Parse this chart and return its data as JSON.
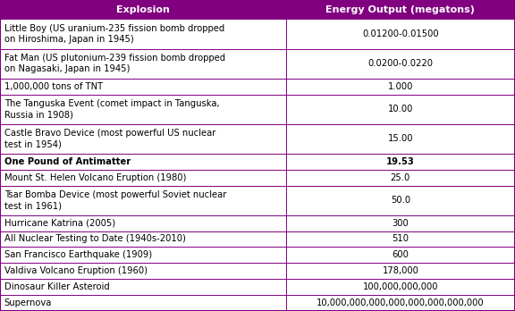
{
  "header": [
    "Explosion",
    "Energy Output (megatons)"
  ],
  "header_bg": "#800080",
  "header_fg": "#ffffff",
  "rows": [
    [
      "Little Boy (US uranium-235 fission bomb dropped\non Hiroshima, Japan in 1945)",
      "0.01200-0.01500"
    ],
    [
      "Fat Man (US plutonium-239 fission bomb dropped\non Nagasaki, Japan in 1945)",
      "0.0200-0.0220"
    ],
    [
      "1,000,000 tons of TNT",
      "1.000"
    ],
    [
      "The Tanguska Event (comet impact in Tanguska,\nRussia in 1908)",
      "10.00"
    ],
    [
      "Castle Bravo Device (most powerful US nuclear\ntest in 1954)",
      "15.00"
    ],
    [
      "One Pound of Antimatter",
      "19.53"
    ],
    [
      "Mount St. Helen Volcano Eruption (1980)",
      "25.0"
    ],
    [
      "Tsar Bomba Device (most powerful Soviet nuclear\ntest in 1961)",
      "50.0"
    ],
    [
      "Hurricane Katrina (2005)",
      "300"
    ],
    [
      "All Nuclear Testing to Date (1940s-2010)",
      "510"
    ],
    [
      "San Francisco Earthquake (1909)",
      "600"
    ],
    [
      "Valdiva Volcano Eruption (1960)",
      "178,000"
    ],
    [
      "Dinosaur Killer Asteroid",
      "100,000,000,000"
    ],
    [
      "Supernova",
      "10,000,000,000,000,000,000,000,000"
    ]
  ],
  "bold_row_index": 5,
  "col_split": 0.555,
  "row_bg": "#ffffff",
  "border_color": "#800080",
  "text_color": "#000000",
  "font_size": 7.2,
  "header_font_size": 8.0,
  "figure_width": 5.76,
  "figure_height": 3.48,
  "dpi": 100
}
